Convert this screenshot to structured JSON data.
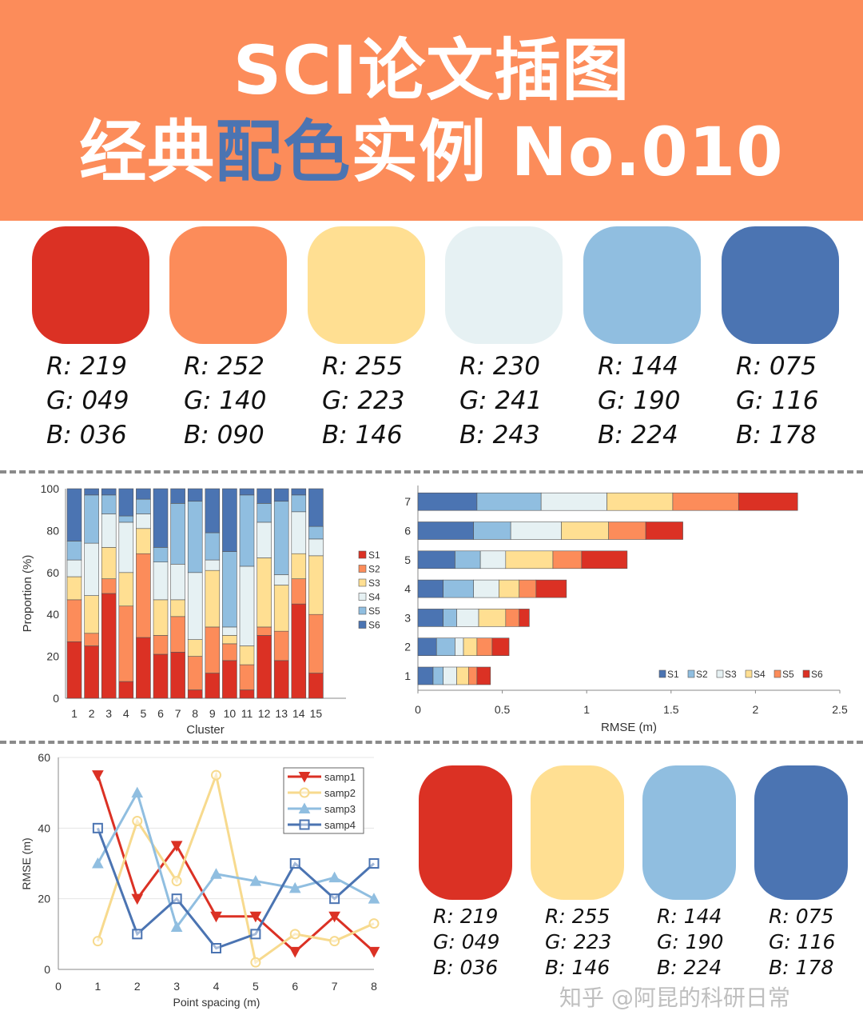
{
  "header": {
    "line1": "SCI论文插图",
    "line2_a": "经典",
    "line2_highlight": "配色",
    "line2_b": "实例 No.010",
    "bg_color": "#FC8C5A",
    "highlight_color": "#4B74B2"
  },
  "palette_top": [
    {
      "hex": "#DB3124",
      "r": "R: 219",
      "g": "G: 049",
      "b": "B: 036"
    },
    {
      "hex": "#FC8C5A",
      "r": "R: 252",
      "g": "G: 140",
      "b": "B: 090"
    },
    {
      "hex": "#FFDF92",
      "r": "R: 255",
      "g": "G: 223",
      "b": "B: 146"
    },
    {
      "hex": "#E6F1F3",
      "r": "R: 230",
      "g": "G: 241",
      "b": "B: 243"
    },
    {
      "hex": "#90BEE0",
      "r": "R: 144",
      "g": "G: 190",
      "b": "B: 224"
    },
    {
      "hex": "#4B74B2",
      "r": "R: 075",
      "g": "G: 116",
      "b": "B: 178"
    }
  ],
  "palette_bottom": [
    {
      "hex": "#DB3124",
      "r": "R: 219",
      "g": "G: 049",
      "b": "B: 036"
    },
    {
      "hex": "#FFDF92",
      "r": "R: 255",
      "g": "G: 223",
      "b": "B: 146"
    },
    {
      "hex": "#90BEE0",
      "r": "R: 144",
      "g": "G: 190",
      "b": "B: 224"
    },
    {
      "hex": "#4B74B2",
      "r": "R: 075",
      "g": "G: 116",
      "b": "B: 178"
    }
  ],
  "watermark": "知乎 @阿昆的科研日常",
  "chart_data": [
    {
      "type": "bar",
      "stacked": true,
      "orientation": "vertical",
      "xlabel": "Cluster",
      "ylabel": "Proportion (%)",
      "ylim": [
        0,
        100
      ],
      "yticks": [
        "0",
        "20",
        "40",
        "60",
        "80",
        "100"
      ],
      "categories": [
        "1",
        "2",
        "3",
        "4",
        "5",
        "6",
        "7",
        "8",
        "9",
        "10",
        "11",
        "12",
        "13",
        "14",
        "15"
      ],
      "legend_position": "right",
      "series": [
        {
          "name": "S1",
          "color": "#DB3124",
          "values": [
            27,
            25,
            50,
            8,
            29,
            21,
            22,
            4,
            12,
            18,
            4,
            30,
            18,
            45,
            12
          ]
        },
        {
          "name": "S2",
          "color": "#FC8C5A",
          "values": [
            20,
            6,
            7,
            36,
            40,
            9,
            17,
            16,
            22,
            8,
            12,
            4,
            14,
            12,
            28
          ]
        },
        {
          "name": "S3",
          "color": "#FFDF92",
          "values": [
            11,
            18,
            15,
            16,
            12,
            17,
            8,
            8,
            27,
            4,
            9,
            33,
            22,
            12,
            28
          ]
        },
        {
          "name": "S4",
          "color": "#E6F1F3",
          "values": [
            8,
            25,
            16,
            24,
            7,
            18,
            17,
            32,
            5,
            4,
            38,
            17,
            5,
            20,
            8
          ]
        },
        {
          "name": "S5",
          "color": "#90BEE0",
          "values": [
            9,
            23,
            9,
            3,
            7,
            7,
            29,
            34,
            13,
            36,
            34,
            9,
            35,
            8,
            6
          ]
        },
        {
          "name": "S6",
          "color": "#4B74B2",
          "values": [
            25,
            3,
            3,
            13,
            5,
            28,
            7,
            6,
            21,
            30,
            3,
            7,
            6,
            3,
            18
          ]
        }
      ]
    },
    {
      "type": "bar",
      "stacked": true,
      "orientation": "horizontal",
      "xlabel": "RMSE (m)",
      "xlim": [
        0,
        2.5
      ],
      "xticks": [
        "0",
        "0.5",
        "1",
        "1.5",
        "2",
        "2.5"
      ],
      "categories": [
        "1",
        "2",
        "3",
        "4",
        "5",
        "6",
        "7"
      ],
      "legend_position": "bottom-right",
      "series": [
        {
          "name": "S1",
          "color": "#4B74B2",
          "values": [
            0.09,
            0.11,
            0.15,
            0.15,
            0.22,
            0.33,
            0.35
          ]
        },
        {
          "name": "S2",
          "color": "#90BEE0",
          "values": [
            0.06,
            0.11,
            0.08,
            0.18,
            0.15,
            0.22,
            0.38
          ]
        },
        {
          "name": "S3",
          "color": "#E6F1F3",
          "values": [
            0.08,
            0.05,
            0.13,
            0.15,
            0.15,
            0.3,
            0.39
          ]
        },
        {
          "name": "S4",
          "color": "#FFDF92",
          "values": [
            0.07,
            0.08,
            0.16,
            0.12,
            0.28,
            0.28,
            0.39
          ]
        },
        {
          "name": "S5",
          "color": "#FC8C5A",
          "values": [
            0.05,
            0.09,
            0.08,
            0.1,
            0.17,
            0.22,
            0.39
          ]
        },
        {
          "name": "S6",
          "color": "#DB3124",
          "values": [
            0.08,
            0.1,
            0.06,
            0.18,
            0.27,
            0.22,
            0.35
          ]
        }
      ]
    },
    {
      "type": "line",
      "xlabel": "Point spacing (m)",
      "ylabel": "RMSE (m)",
      "xlim": [
        0,
        8
      ],
      "ylim": [
        0,
        60
      ],
      "xticks": [
        "0",
        "1",
        "2",
        "3",
        "4",
        "5",
        "6",
        "7",
        "8"
      ],
      "yticks": [
        "0",
        "20",
        "40",
        "60"
      ],
      "grid": "horizontal",
      "legend_position": "top-right",
      "x": [
        1,
        2,
        3,
        4,
        5,
        6,
        7,
        8
      ],
      "series": [
        {
          "name": "samp1",
          "color": "#DB3124",
          "marker": "triangle-down",
          "values": [
            55,
            20,
            35,
            15,
            15,
            5,
            15,
            5
          ]
        },
        {
          "name": "samp2",
          "color": "#F7DA8E",
          "marker": "circle",
          "values": [
            8,
            42,
            25,
            55,
            2,
            10,
            8,
            13
          ]
        },
        {
          "name": "samp3",
          "color": "#90BEE0",
          "marker": "triangle-up",
          "values": [
            30,
            50,
            12,
            27,
            25,
            23,
            26,
            20
          ]
        },
        {
          "name": "samp4",
          "color": "#4B74B2",
          "marker": "square",
          "values": [
            40,
            10,
            20,
            6,
            10,
            30,
            20,
            30
          ]
        }
      ]
    }
  ]
}
